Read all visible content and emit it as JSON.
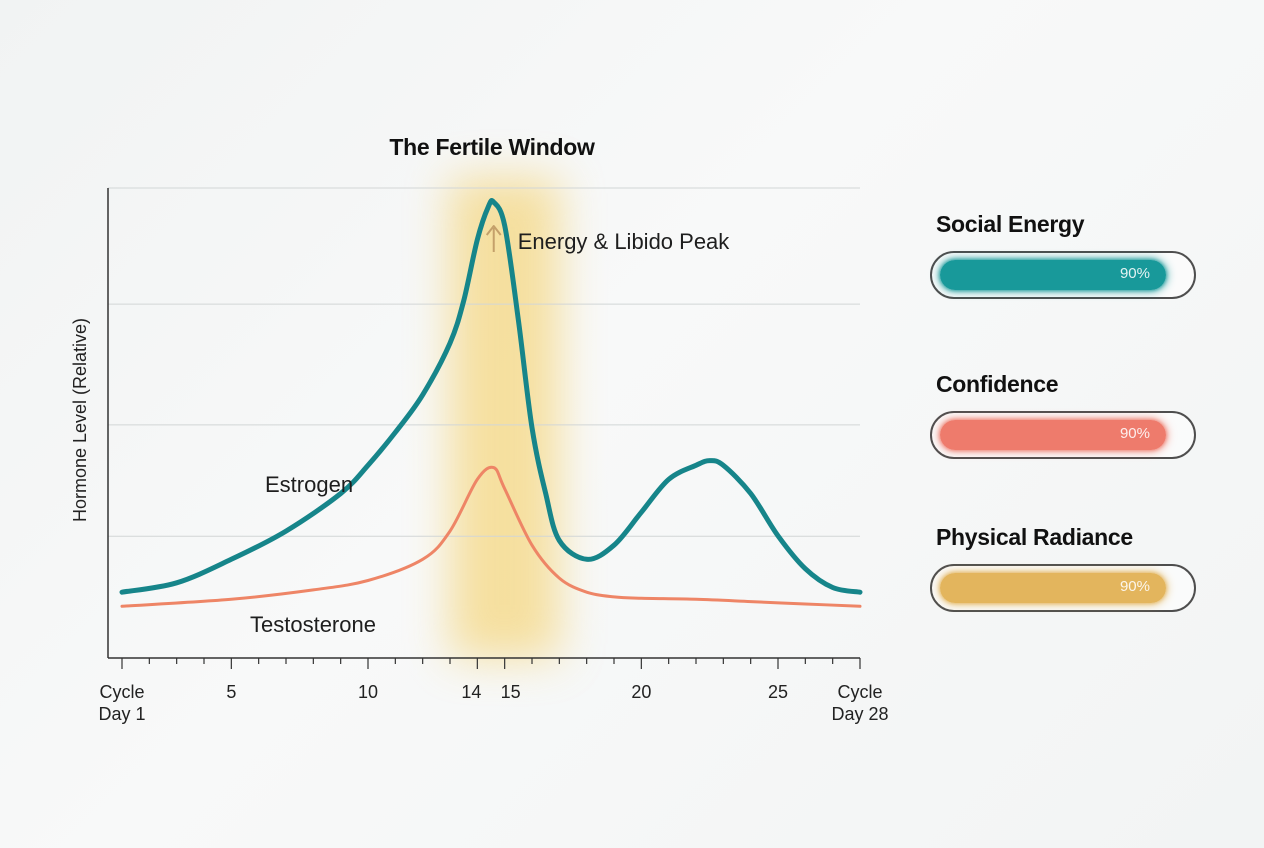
{
  "chart_data": {
    "type": "line",
    "title": "The Fertile Window",
    "ylabel": "Hormone Level (Relative)",
    "xlim": [
      1,
      28
    ],
    "ylim": [
      0,
      100
    ],
    "ticks": [
      {
        "x": 1,
        "line1": "Cycle",
        "line2": "Day 1"
      },
      {
        "x": 5,
        "line1": "5"
      },
      {
        "x": 10,
        "line1": "10"
      },
      {
        "x": 14,
        "line1": "14"
      },
      {
        "x": 15,
        "line1": "15"
      },
      {
        "x": 20,
        "line1": "20"
      },
      {
        "x": 25,
        "line1": "25"
      },
      {
        "x": 28,
        "line1": "Cycle",
        "line2": "Day 28"
      }
    ],
    "highlight_band": {
      "from": 13,
      "to": 17
    },
    "annotation": {
      "text": "Energy & Libido Peak",
      "x": 14.6
    },
    "series": [
      {
        "name": "Estrogen",
        "color": "#16858a",
        "x": [
          1,
          3,
          5,
          7,
          9,
          10,
          11,
          12,
          13,
          13.5,
          14,
          14.4,
          14.6,
          15,
          15.5,
          16,
          16.5,
          17,
          18,
          19,
          20,
          21,
          22,
          22.5,
          23,
          24,
          25,
          26,
          27,
          28
        ],
        "y": [
          14,
          16,
          21,
          27,
          35,
          41,
          48,
          56,
          67,
          76,
          89,
          96,
          97,
          92,
          72,
          49,
          35,
          25,
          21,
          24,
          31,
          38,
          41,
          42,
          41,
          35,
          26,
          19,
          15,
          14
        ]
      },
      {
        "name": "Testosterone",
        "color": "#ee8566",
        "x": [
          1,
          5,
          8,
          10,
          12,
          13,
          14,
          14.6,
          15,
          16,
          17,
          18,
          19,
          20,
          22,
          24,
          26,
          28
        ],
        "y": [
          11,
          12.5,
          14.5,
          16.5,
          21,
          27,
          38,
          40.5,
          36,
          24,
          17,
          14,
          13,
          12.7,
          12.5,
          12,
          11.5,
          11
        ]
      }
    ]
  },
  "metrics": [
    {
      "title": "Social Energy",
      "value": 0.9,
      "label": "90%",
      "color": "#18999a"
    },
    {
      "title": "Confidence",
      "value": 0.9,
      "label": "90%",
      "color": "#ee7b6c"
    },
    {
      "title": "Physical Radiance",
      "value": 0.9,
      "label": "90%",
      "color": "#e3b55d"
    }
  ]
}
